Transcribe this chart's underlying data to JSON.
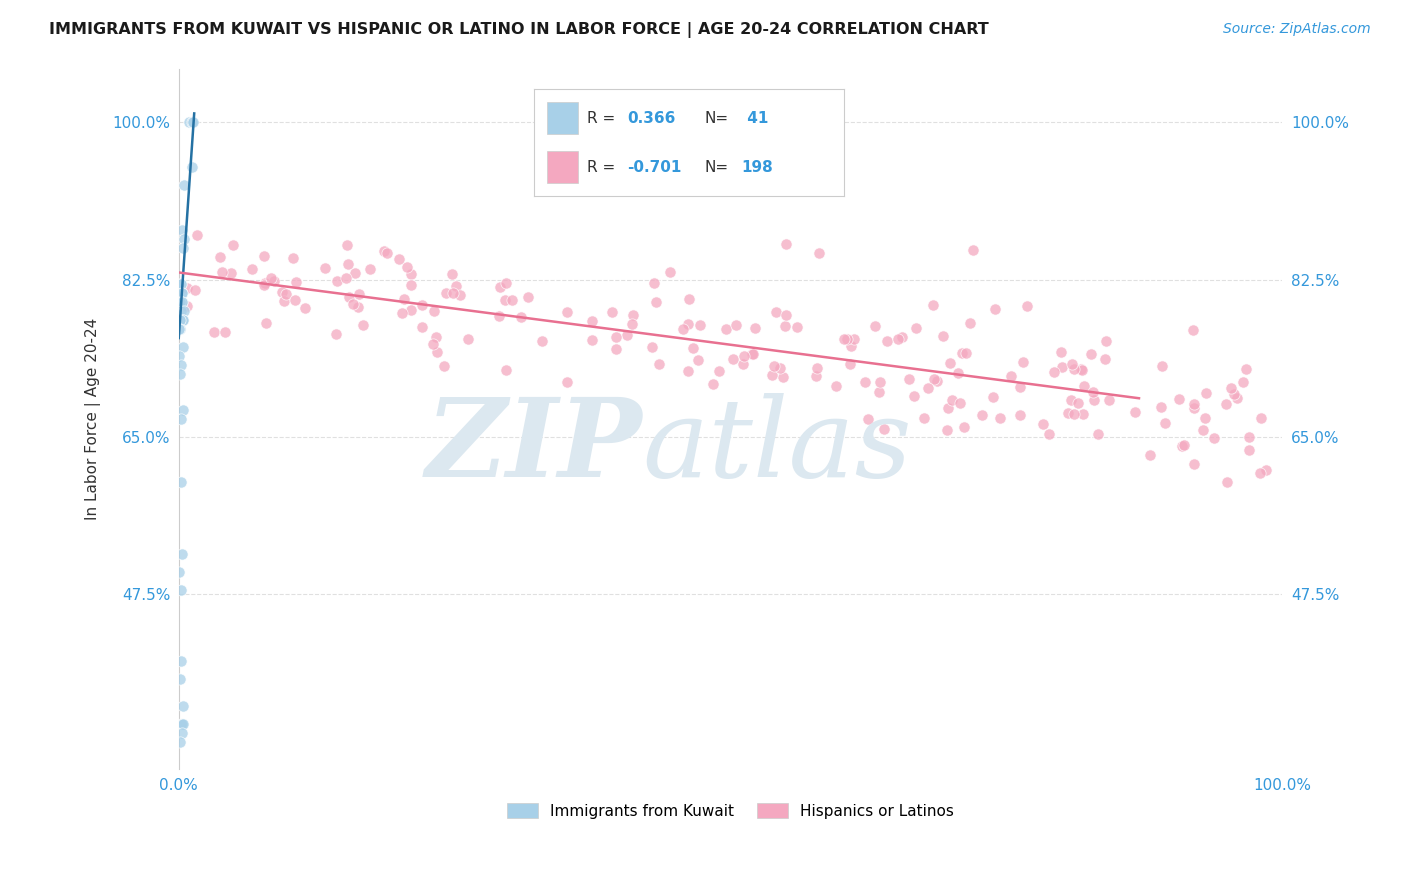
{
  "title": "IMMIGRANTS FROM KUWAIT VS HISPANIC OR LATINO IN LABOR FORCE | AGE 20-24 CORRELATION CHART",
  "source_text": "Source: ZipAtlas.com",
  "ylabel": "In Labor Force | Age 20-24",
  "xlim": [
    0.0,
    1.0
  ],
  "ylim": [
    0.28,
    1.06
  ],
  "ytick_labels": [
    "47.5%",
    "65.0%",
    "82.5%",
    "100.0%"
  ],
  "ytick_values": [
    0.475,
    0.65,
    0.825,
    1.0
  ],
  "xtick_labels": [
    "0.0%",
    "100.0%"
  ],
  "xtick_values": [
    0.0,
    1.0
  ],
  "blue_color": "#a8d0e8",
  "pink_color": "#f4a8c0",
  "blue_edge_color": "#ffffff",
  "pink_edge_color": "#ffffff",
  "blue_line_color": "#2471a3",
  "pink_line_color": "#e87090",
  "title_color": "#1a1a1a",
  "axis_label_color": "#333333",
  "tick_label_color": "#3498db",
  "watermark_zip_color": "#dce8f0",
  "watermark_atlas_color": "#dce8f0",
  "grid_color": "#e0e0e0",
  "background_color": "#ffffff",
  "legend_border_color": "#cccccc",
  "blue_line_x0": 0.0,
  "blue_line_y0": 0.76,
  "blue_line_x1": 0.014,
  "blue_line_y1": 1.01,
  "pink_line_x0": 0.0,
  "pink_line_y0": 0.833,
  "pink_line_x1": 0.87,
  "pink_line_y1": 0.693
}
